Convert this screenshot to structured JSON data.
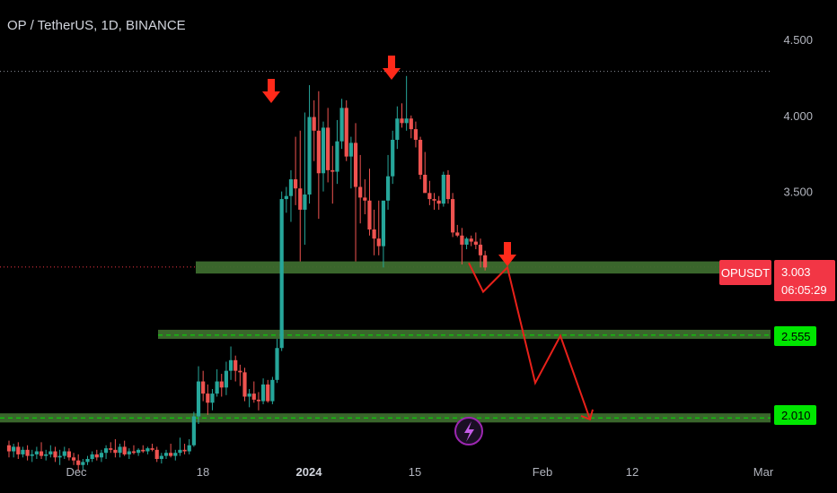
{
  "header": {
    "title": "OP / TetherUS, 1D, BINANCE"
  },
  "colors": {
    "up": "#26a69a",
    "down": "#ef5350",
    "zone": "#3d6b2e",
    "arrow": "#ff2a1a",
    "path": "#e8211a",
    "price_tag": "#f23645",
    "level_tag": "#00e600",
    "axis_text": "#b2b5be"
  },
  "price_tag": {
    "symbol": "OPUSDT",
    "price": "3.003",
    "countdown": "06:05:29"
  },
  "level_tags": [
    "2.555",
    "2.010"
  ],
  "event_icon": "lightning-icon",
  "chart_data": {
    "type": "candlestick",
    "title": "OP / TetherUS, 1D, BINANCE",
    "ylim": [
      1.74,
      4.76
    ],
    "y_ticks": [
      "4.500",
      "4.000",
      "3.500"
    ],
    "x_ticks": [
      "Dec",
      "18",
      "2024",
      "15",
      "Feb",
      "12",
      "Mar"
    ],
    "x_ticks_bold": [
      "2024"
    ],
    "last_price": 3.003,
    "dotted_level": 4.29,
    "candles": [
      {
        "o": 1.83,
        "h": 1.86,
        "l": 1.75,
        "c": 1.79
      },
      {
        "o": 1.79,
        "h": 1.84,
        "l": 1.75,
        "c": 1.82
      },
      {
        "o": 1.82,
        "h": 1.85,
        "l": 1.74,
        "c": 1.77
      },
      {
        "o": 1.77,
        "h": 1.82,
        "l": 1.75,
        "c": 1.8
      },
      {
        "o": 1.8,
        "h": 1.83,
        "l": 1.73,
        "c": 1.76
      },
      {
        "o": 1.76,
        "h": 1.8,
        "l": 1.72,
        "c": 1.77
      },
      {
        "o": 1.77,
        "h": 1.82,
        "l": 1.74,
        "c": 1.79
      },
      {
        "o": 1.79,
        "h": 1.85,
        "l": 1.74,
        "c": 1.76
      },
      {
        "o": 1.76,
        "h": 1.8,
        "l": 1.73,
        "c": 1.77
      },
      {
        "o": 1.77,
        "h": 1.83,
        "l": 1.75,
        "c": 1.79
      },
      {
        "o": 1.79,
        "h": 1.82,
        "l": 1.72,
        "c": 1.75
      },
      {
        "o": 1.75,
        "h": 1.8,
        "l": 1.7,
        "c": 1.76
      },
      {
        "o": 1.76,
        "h": 1.82,
        "l": 1.74,
        "c": 1.79
      },
      {
        "o": 1.79,
        "h": 1.81,
        "l": 1.73,
        "c": 1.75
      },
      {
        "o": 1.75,
        "h": 1.78,
        "l": 1.7,
        "c": 1.73
      },
      {
        "o": 1.73,
        "h": 1.77,
        "l": 1.66,
        "c": 1.7
      },
      {
        "o": 1.7,
        "h": 1.74,
        "l": 1.67,
        "c": 1.72
      },
      {
        "o": 1.72,
        "h": 1.76,
        "l": 1.7,
        "c": 1.74
      },
      {
        "o": 1.74,
        "h": 1.79,
        "l": 1.72,
        "c": 1.77
      },
      {
        "o": 1.77,
        "h": 1.8,
        "l": 1.73,
        "c": 1.75
      },
      {
        "o": 1.75,
        "h": 1.8,
        "l": 1.72,
        "c": 1.78
      },
      {
        "o": 1.78,
        "h": 1.83,
        "l": 1.74,
        "c": 1.81
      },
      {
        "o": 1.81,
        "h": 1.85,
        "l": 1.78,
        "c": 1.8
      },
      {
        "o": 1.8,
        "h": 1.87,
        "l": 1.75,
        "c": 1.78
      },
      {
        "o": 1.78,
        "h": 1.84,
        "l": 1.75,
        "c": 1.82
      },
      {
        "o": 1.82,
        "h": 1.86,
        "l": 1.76,
        "c": 1.77
      },
      {
        "o": 1.77,
        "h": 1.81,
        "l": 1.74,
        "c": 1.79
      },
      {
        "o": 1.79,
        "h": 1.83,
        "l": 1.77,
        "c": 1.78
      },
      {
        "o": 1.78,
        "h": 1.81,
        "l": 1.76,
        "c": 1.8
      },
      {
        "o": 1.8,
        "h": 1.83,
        "l": 1.78,
        "c": 1.79
      },
      {
        "o": 1.79,
        "h": 1.82,
        "l": 1.77,
        "c": 1.81
      },
      {
        "o": 1.81,
        "h": 1.84,
        "l": 1.79,
        "c": 1.8
      },
      {
        "o": 1.8,
        "h": 1.82,
        "l": 1.72,
        "c": 1.74
      },
      {
        "o": 1.74,
        "h": 1.78,
        "l": 1.71,
        "c": 1.76
      },
      {
        "o": 1.76,
        "h": 1.8,
        "l": 1.74,
        "c": 1.78
      },
      {
        "o": 1.78,
        "h": 1.84,
        "l": 1.75,
        "c": 1.76
      },
      {
        "o": 1.76,
        "h": 1.8,
        "l": 1.73,
        "c": 1.78
      },
      {
        "o": 1.78,
        "h": 1.88,
        "l": 1.76,
        "c": 1.8
      },
      {
        "o": 1.8,
        "h": 1.84,
        "l": 1.77,
        "c": 1.79
      },
      {
        "o": 1.79,
        "h": 1.87,
        "l": 1.77,
        "c": 1.83
      },
      {
        "o": 1.83,
        "h": 2.05,
        "l": 1.82,
        "c": 2.02
      },
      {
        "o": 2.02,
        "h": 2.35,
        "l": 1.97,
        "c": 2.25
      },
      {
        "o": 2.25,
        "h": 2.32,
        "l": 2.12,
        "c": 2.17
      },
      {
        "o": 2.17,
        "h": 2.23,
        "l": 2.03,
        "c": 2.11
      },
      {
        "o": 2.11,
        "h": 2.2,
        "l": 2.06,
        "c": 2.17
      },
      {
        "o": 2.17,
        "h": 2.33,
        "l": 2.15,
        "c": 2.25
      },
      {
        "o": 2.25,
        "h": 2.3,
        "l": 2.15,
        "c": 2.21
      },
      {
        "o": 2.21,
        "h": 2.38,
        "l": 2.16,
        "c": 2.32
      },
      {
        "o": 2.32,
        "h": 2.48,
        "l": 2.26,
        "c": 2.39
      },
      {
        "o": 2.39,
        "h": 2.42,
        "l": 2.25,
        "c": 2.32
      },
      {
        "o": 2.32,
        "h": 2.36,
        "l": 2.22,
        "c": 2.31
      },
      {
        "o": 2.31,
        "h": 2.34,
        "l": 2.12,
        "c": 2.15
      },
      {
        "o": 2.15,
        "h": 2.2,
        "l": 2.08,
        "c": 2.17
      },
      {
        "o": 2.17,
        "h": 2.25,
        "l": 2.11,
        "c": 2.13
      },
      {
        "o": 2.13,
        "h": 2.18,
        "l": 2.06,
        "c": 2.12
      },
      {
        "o": 2.12,
        "h": 2.27,
        "l": 2.1,
        "c": 2.23
      },
      {
        "o": 2.23,
        "h": 2.26,
        "l": 2.11,
        "c": 2.12
      },
      {
        "o": 2.12,
        "h": 2.28,
        "l": 2.1,
        "c": 2.26
      },
      {
        "o": 2.26,
        "h": 2.53,
        "l": 2.24,
        "c": 2.47
      },
      {
        "o": 2.47,
        "h": 3.5,
        "l": 2.45,
        "c": 3.45
      },
      {
        "o": 3.45,
        "h": 3.53,
        "l": 3.36,
        "c": 3.47
      },
      {
        "o": 3.47,
        "h": 3.64,
        "l": 3.3,
        "c": 3.58
      },
      {
        "o": 3.58,
        "h": 3.86,
        "l": 3.41,
        "c": 3.52
      },
      {
        "o": 3.52,
        "h": 3.9,
        "l": 3.04,
        "c": 3.38
      },
      {
        "o": 3.38,
        "h": 4.02,
        "l": 3.15,
        "c": 3.48
      },
      {
        "o": 3.48,
        "h": 4.2,
        "l": 3.42,
        "c": 3.99
      },
      {
        "o": 3.99,
        "h": 4.1,
        "l": 3.7,
        "c": 3.9
      },
      {
        "o": 3.9,
        "h": 4.16,
        "l": 3.32,
        "c": 3.62
      },
      {
        "o": 3.62,
        "h": 3.96,
        "l": 3.5,
        "c": 3.92
      },
      {
        "o": 3.92,
        "h": 4.05,
        "l": 3.56,
        "c": 3.64
      },
      {
        "o": 3.64,
        "h": 3.8,
        "l": 3.42,
        "c": 3.63
      },
      {
        "o": 3.63,
        "h": 3.97,
        "l": 3.55,
        "c": 3.83
      },
      {
        "o": 3.83,
        "h": 4.11,
        "l": 3.78,
        "c": 4.05
      },
      {
        "o": 4.05,
        "h": 4.1,
        "l": 3.7,
        "c": 3.73
      },
      {
        "o": 3.73,
        "h": 3.86,
        "l": 3.52,
        "c": 3.82
      },
      {
        "o": 3.82,
        "h": 3.95,
        "l": 3.04,
        "c": 3.53
      },
      {
        "o": 3.53,
        "h": 3.74,
        "l": 3.29,
        "c": 3.46
      },
      {
        "o": 3.46,
        "h": 3.58,
        "l": 3.35,
        "c": 3.44
      },
      {
        "o": 3.44,
        "h": 3.65,
        "l": 3.21,
        "c": 3.25
      },
      {
        "o": 3.25,
        "h": 3.38,
        "l": 3.08,
        "c": 3.19
      },
      {
        "o": 3.19,
        "h": 3.44,
        "l": 3.08,
        "c": 3.14
      },
      {
        "o": 3.14,
        "h": 3.42,
        "l": 3.0,
        "c": 3.44
      },
      {
        "o": 3.44,
        "h": 3.74,
        "l": 3.38,
        "c": 3.6
      },
      {
        "o": 3.6,
        "h": 3.9,
        "l": 3.55,
        "c": 3.84
      },
      {
        "o": 3.84,
        "h": 4.06,
        "l": 3.78,
        "c": 3.98
      },
      {
        "o": 3.98,
        "h": 4.08,
        "l": 3.92,
        "c": 3.95
      },
      {
        "o": 3.95,
        "h": 4.26,
        "l": 3.9,
        "c": 3.98
      },
      {
        "o": 3.98,
        "h": 4.0,
        "l": 3.85,
        "c": 3.91
      },
      {
        "o": 3.91,
        "h": 3.96,
        "l": 3.79,
        "c": 3.84
      },
      {
        "o": 3.84,
        "h": 3.86,
        "l": 3.58,
        "c": 3.61
      },
      {
        "o": 3.61,
        "h": 3.76,
        "l": 3.52,
        "c": 3.49
      },
      {
        "o": 3.49,
        "h": 3.57,
        "l": 3.41,
        "c": 3.45
      },
      {
        "o": 3.45,
        "h": 3.49,
        "l": 3.38,
        "c": 3.44
      },
      {
        "o": 3.44,
        "h": 3.47,
        "l": 3.38,
        "c": 3.42
      },
      {
        "o": 3.42,
        "h": 3.63,
        "l": 3.4,
        "c": 3.61
      },
      {
        "o": 3.61,
        "h": 3.64,
        "l": 3.42,
        "c": 3.45
      },
      {
        "o": 3.45,
        "h": 3.49,
        "l": 3.2,
        "c": 3.23
      },
      {
        "o": 3.23,
        "h": 3.28,
        "l": 3.2,
        "c": 3.21
      },
      {
        "o": 3.21,
        "h": 3.26,
        "l": 3.02,
        "c": 3.15
      },
      {
        "o": 3.15,
        "h": 3.2,
        "l": 3.12,
        "c": 3.19
      },
      {
        "o": 3.19,
        "h": 3.21,
        "l": 3.14,
        "c": 3.17
      },
      {
        "o": 3.17,
        "h": 3.23,
        "l": 3.12,
        "c": 3.15
      },
      {
        "o": 3.15,
        "h": 3.19,
        "l": 3.0,
        "c": 3.08
      },
      {
        "o": 3.08,
        "h": 3.11,
        "l": 2.98,
        "c": 3.0
      }
    ],
    "zones": [
      {
        "label": "resistance-turned-support",
        "low": 2.96,
        "high": 3.04,
        "from": "mid-Dec",
        "to": "axis"
      },
      {
        "label": "level-2.555",
        "low": 2.53,
        "high": 2.59,
        "from": "Dec",
        "to": "axis"
      },
      {
        "label": "level-2.010",
        "low": 1.98,
        "high": 2.04,
        "from": "start",
        "to": "axis"
      }
    ],
    "dashed_levels": [
      2.555,
      2.01
    ],
    "projection_path": [
      3.03,
      2.84,
      3.0,
      2.24,
      2.55,
      2.0
    ],
    "down_arrows": 3
  }
}
